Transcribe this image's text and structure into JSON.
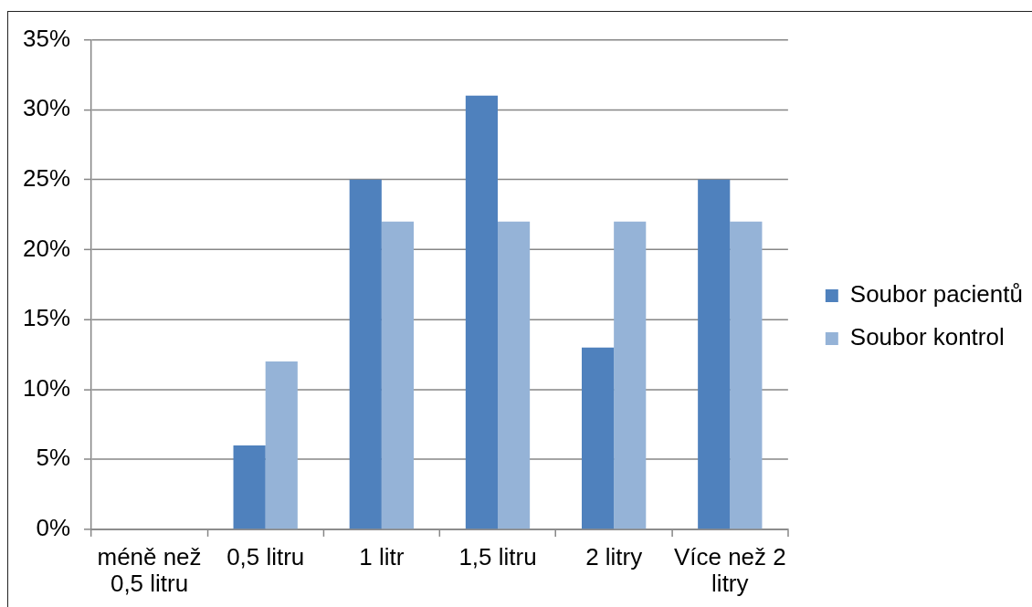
{
  "chart_data": {
    "type": "bar",
    "categories": [
      "méně než 0,5 litru",
      "0,5 litru",
      "1 litr",
      "1,5 litru",
      "2 litry",
      "Více než 2 litry"
    ],
    "series": [
      {
        "name": "Soubor pacientů",
        "color": "#4f81bd",
        "values": [
          0,
          6,
          25,
          31,
          13,
          25
        ]
      },
      {
        "name": "Soubor kontrol",
        "color": "#95b3d7",
        "values": [
          0,
          12,
          22,
          22,
          22,
          22
        ]
      }
    ],
    "ylim": [
      0,
      35
    ],
    "yticks": [
      {
        "value": 0,
        "label": "0%"
      },
      {
        "value": 5,
        "label": "5%"
      },
      {
        "value": 10,
        "label": "10%"
      },
      {
        "value": 15,
        "label": "15%"
      },
      {
        "value": 20,
        "label": "20%"
      },
      {
        "value": 25,
        "label": "25%"
      },
      {
        "value": 30,
        "label": "30%"
      },
      {
        "value": 35,
        "label": "35%"
      }
    ],
    "grid": "y",
    "legend": "right"
  }
}
